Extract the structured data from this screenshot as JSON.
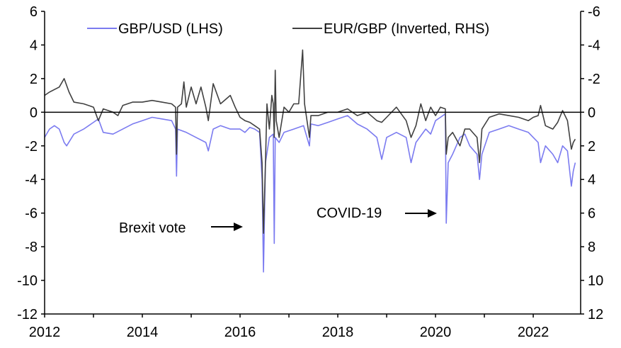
{
  "chart_data": {
    "type": "line",
    "title": "",
    "xlabel": "",
    "ylabel_left": "",
    "ylabel_right": "",
    "xlim": [
      2012,
      2022.97
    ],
    "ylim_left": [
      -12,
      6
    ],
    "ylim_right_inverted": [
      12,
      -6
    ],
    "x_ticks": [
      "2012",
      "2014",
      "2016",
      "2018",
      "2020",
      "2022"
    ],
    "x_tick_values": [
      2012,
      2014,
      2016,
      2018,
      2020,
      2022
    ],
    "y_left_ticks": [
      "6",
      "4",
      "2",
      "0",
      "-2",
      "-4",
      "-6",
      "-8",
      "-10",
      "-12"
    ],
    "y_left_tick_values": [
      6,
      4,
      2,
      0,
      -2,
      -4,
      -6,
      -8,
      -10,
      -12
    ],
    "y_right_ticks": [
      "-6",
      "-4",
      "-2",
      "0",
      "2",
      "4",
      "6",
      "8",
      "10",
      "12"
    ],
    "y_right_tick_values": [
      -6,
      -4,
      -2,
      0,
      2,
      4,
      6,
      8,
      10,
      12
    ],
    "legend_placement": "top",
    "series": [
      {
        "name": "GBP/USD (LHS)",
        "axis": "left",
        "color": "#7b7bf0",
        "x": [
          2012.0,
          2012.1,
          2012.2,
          2012.3,
          2012.4,
          2012.45,
          2012.6,
          2012.8,
          2013.0,
          2013.1,
          2013.2,
          2013.4,
          2013.6,
          2013.8,
          2014.0,
          2014.2,
          2014.4,
          2014.6,
          2014.68,
          2014.7,
          2014.72,
          2014.9,
          2015.1,
          2015.3,
          2015.35,
          2015.45,
          2015.6,
          2015.8,
          2016.0,
          2016.1,
          2016.2,
          2016.3,
          2016.4,
          2016.45,
          2016.48,
          2016.52,
          2016.6,
          2016.68,
          2016.7,
          2016.72,
          2016.8,
          2016.9,
          2017.1,
          2017.3,
          2017.42,
          2017.45,
          2017.6,
          2017.8,
          2018.0,
          2018.2,
          2018.4,
          2018.6,
          2018.8,
          2018.9,
          2019.0,
          2019.2,
          2019.4,
          2019.5,
          2019.6,
          2019.8,
          2019.9,
          2020.0,
          2020.1,
          2020.2,
          2020.22,
          2020.26,
          2020.35,
          2020.5,
          2020.6,
          2020.7,
          2020.85,
          2020.9,
          2020.95,
          2021.1,
          2021.3,
          2021.5,
          2021.7,
          2021.9,
          2022.0,
          2022.1,
          2022.15,
          2022.25,
          2022.4,
          2022.5,
          2022.6,
          2022.7,
          2022.78,
          2022.82,
          2022.86
        ],
        "y": [
          -1.5,
          -1.0,
          -0.8,
          -1.0,
          -1.8,
          -2.0,
          -1.3,
          -1.0,
          -0.6,
          -0.4,
          -1.2,
          -1.3,
          -1.0,
          -0.7,
          -0.5,
          -0.3,
          -0.4,
          -0.5,
          -1.0,
          -3.8,
          -1.0,
          -1.2,
          -1.5,
          -1.8,
          -2.3,
          -1.0,
          -0.8,
          -1.0,
          -1.0,
          -1.2,
          -0.9,
          -1.0,
          -1.2,
          -4.0,
          -9.5,
          -3.0,
          -1.5,
          -1.3,
          -7.8,
          -1.5,
          -1.8,
          -1.2,
          -1.0,
          -0.8,
          -2.0,
          -0.7,
          -0.8,
          -0.6,
          -0.4,
          -0.2,
          -0.7,
          -1.0,
          -1.5,
          -2.8,
          -1.5,
          -1.2,
          -1.5,
          -3.0,
          -1.8,
          -1.0,
          -1.3,
          -0.5,
          -0.3,
          -0.1,
          -6.6,
          -3.0,
          -2.5,
          -1.5,
          -1.3,
          -2.0,
          -2.5,
          -4.0,
          -2.5,
          -1.2,
          -1.0,
          -0.8,
          -1.0,
          -1.2,
          -1.5,
          -1.8,
          -3.0,
          -2.0,
          -2.5,
          -3.0,
          -2.0,
          -2.3,
          -4.4,
          -3.5,
          -3.0
        ]
      },
      {
        "name": "EUR/GBP (Inverted, RHS)",
        "axis": "right_inverted",
        "color": "#404040",
        "x": [
          2012.0,
          2012.1,
          2012.3,
          2012.4,
          2012.5,
          2012.6,
          2012.8,
          2013.0,
          2013.1,
          2013.2,
          2013.4,
          2013.5,
          2013.6,
          2013.8,
          2014.0,
          2014.2,
          2014.4,
          2014.6,
          2014.68,
          2014.7,
          2014.72,
          2014.8,
          2014.85,
          2014.9,
          2015.0,
          2015.1,
          2015.2,
          2015.3,
          2015.35,
          2015.45,
          2015.6,
          2015.8,
          2015.9,
          2016.0,
          2016.1,
          2016.2,
          2016.3,
          2016.4,
          2016.45,
          2016.48,
          2016.52,
          2016.55,
          2016.6,
          2016.65,
          2016.68,
          2016.7,
          2016.72,
          2016.74,
          2016.8,
          2016.9,
          2017.0,
          2017.1,
          2017.2,
          2017.28,
          2017.32,
          2017.42,
          2017.45,
          2017.6,
          2017.8,
          2018.0,
          2018.2,
          2018.4,
          2018.6,
          2018.8,
          2018.9,
          2019.0,
          2019.2,
          2019.4,
          2019.5,
          2019.6,
          2019.7,
          2019.8,
          2019.9,
          2020.0,
          2020.1,
          2020.2,
          2020.22,
          2020.26,
          2020.35,
          2020.5,
          2020.6,
          2020.7,
          2020.85,
          2020.9,
          2020.95,
          2021.1,
          2021.3,
          2021.5,
          2021.7,
          2021.9,
          2022.0,
          2022.1,
          2022.15,
          2022.25,
          2022.4,
          2022.5,
          2022.6,
          2022.7,
          2022.78,
          2022.82,
          2022.86
        ],
        "y": [
          -1.0,
          -1.2,
          -1.5,
          -2.0,
          -1.2,
          -0.6,
          -0.5,
          -0.3,
          0.5,
          -0.2,
          0.0,
          0.2,
          -0.4,
          -0.6,
          -0.6,
          -0.7,
          -0.6,
          -0.5,
          -0.3,
          2.5,
          -0.3,
          -0.5,
          -1.8,
          -0.3,
          -1.5,
          -0.5,
          -1.5,
          -0.3,
          0.5,
          -1.7,
          -0.5,
          -1.0,
          -0.3,
          0.3,
          0.5,
          0.6,
          0.8,
          1.0,
          3.0,
          7.2,
          3.0,
          -0.5,
          1.0,
          -1.0,
          -0.5,
          1.5,
          -2.5,
          0.5,
          1.5,
          -0.3,
          0.0,
          -0.5,
          -0.5,
          -3.7,
          -0.5,
          1.5,
          0.2,
          0.2,
          0.0,
          0.0,
          -0.2,
          0.2,
          0.0,
          0.5,
          0.6,
          0.3,
          -0.3,
          0.5,
          1.5,
          0.8,
          -0.5,
          0.5,
          -0.3,
          0.2,
          -0.3,
          -0.2,
          2.5,
          1.5,
          1.2,
          2.0,
          1.0,
          1.0,
          1.5,
          3.0,
          1.0,
          0.3,
          0.1,
          0.2,
          0.3,
          0.5,
          0.3,
          0.2,
          -0.4,
          0.8,
          1.0,
          0.6,
          -0.1,
          0.5,
          2.2,
          1.8,
          1.6
        ]
      }
    ],
    "annotations": [
      {
        "text": "Brexit vote",
        "points_to": 2016.45
      },
      {
        "text": "COVID-19",
        "points_to": 2020.2
      }
    ]
  }
}
